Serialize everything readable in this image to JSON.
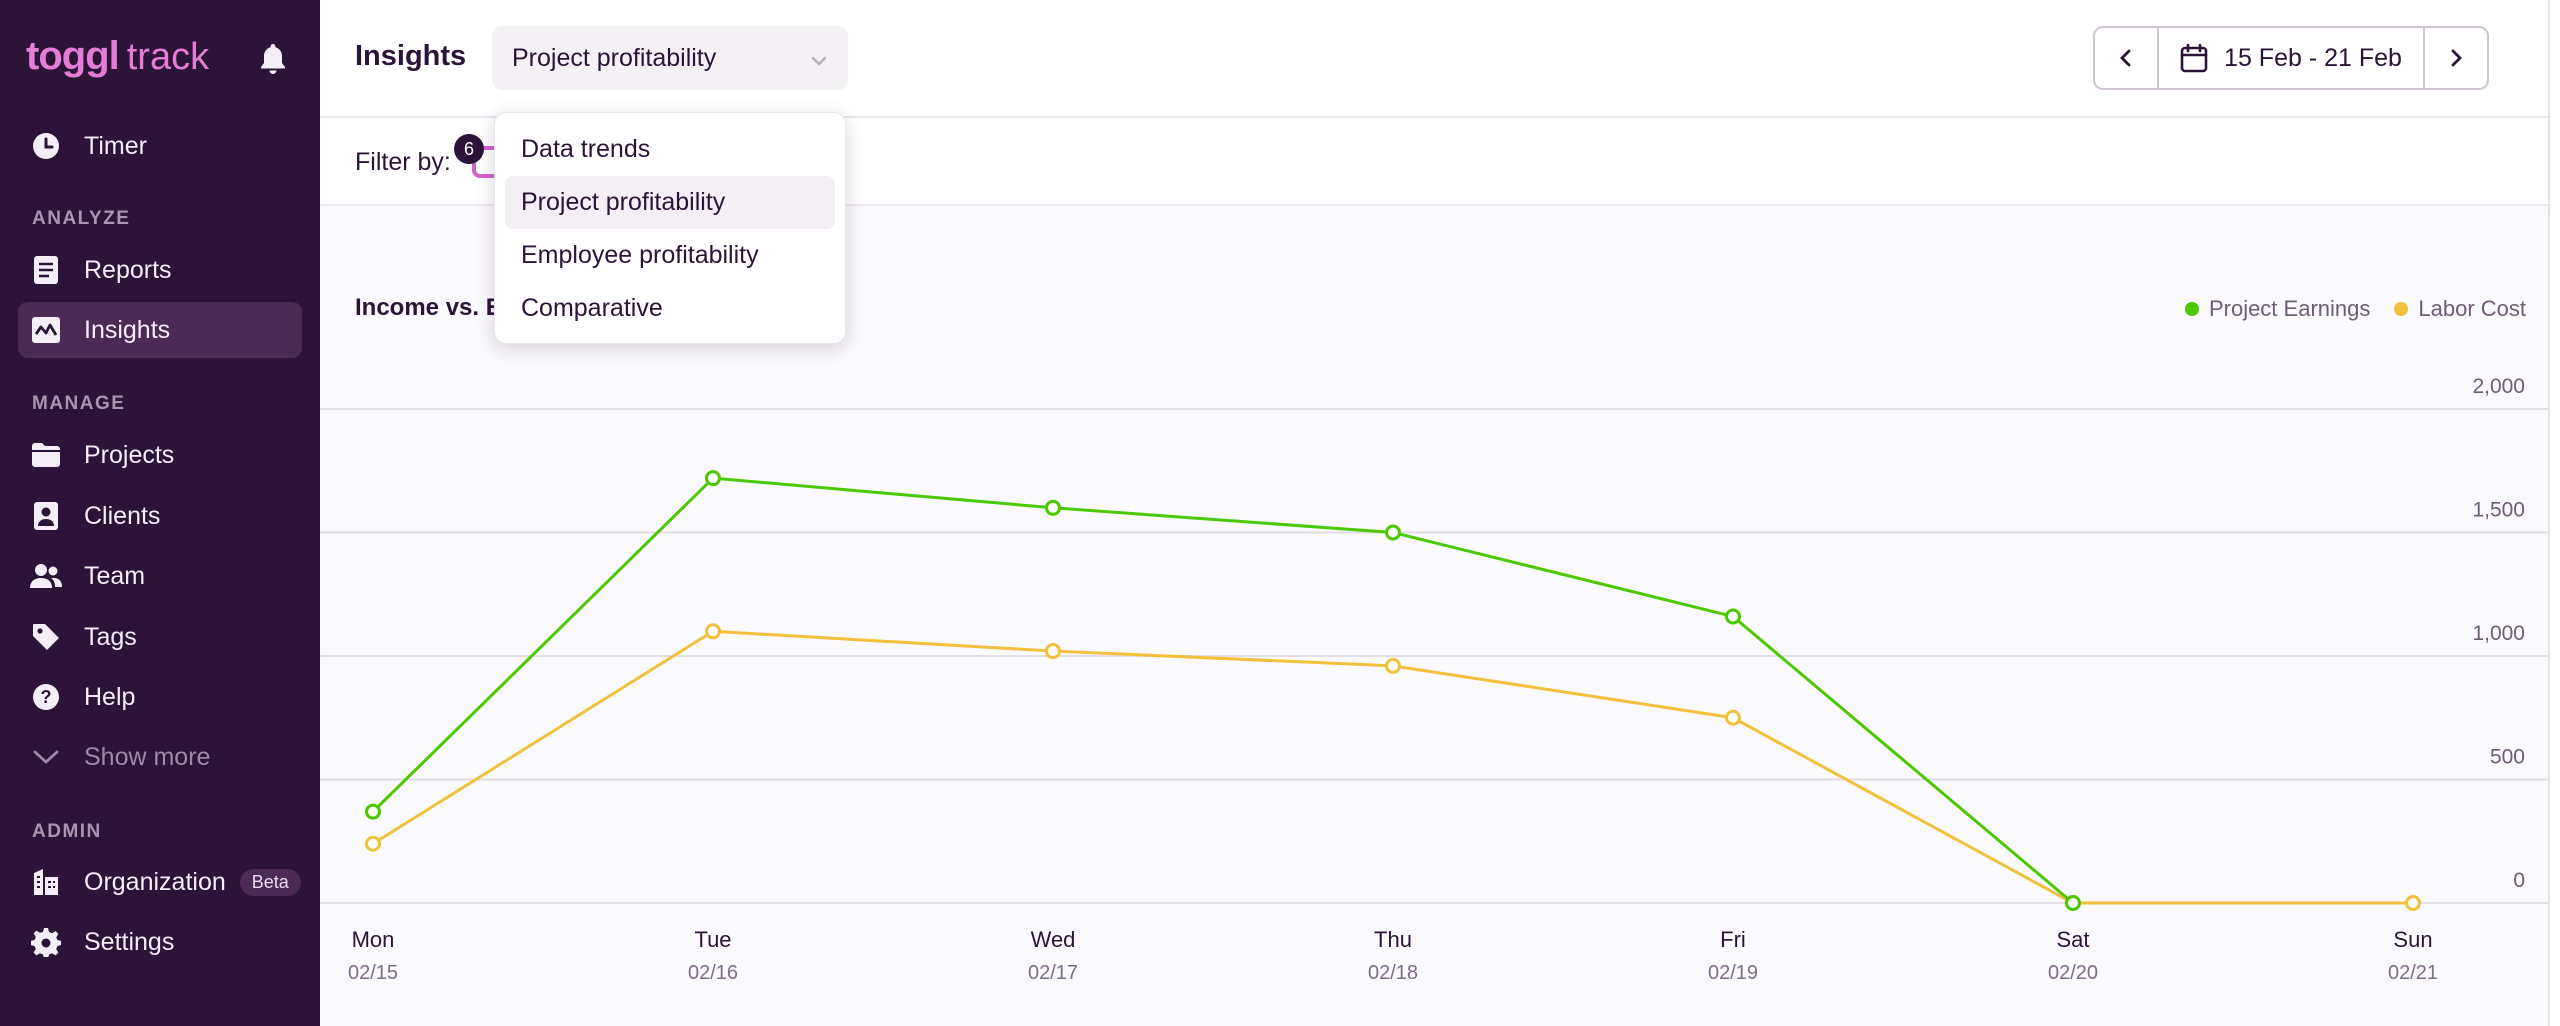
{
  "sidebar": {
    "logo_brand": "toggl",
    "logo_product": "track",
    "timer": "Timer",
    "analyze_label": "ANALYZE",
    "reports": "Reports",
    "insights": "Insights",
    "manage_label": "MANAGE",
    "projects": "Projects",
    "clients": "Clients",
    "team": "Team",
    "tags": "Tags",
    "help": "Help",
    "show_more": "Show more",
    "admin_label": "ADMIN",
    "organization": "Organization",
    "beta": "Beta",
    "settings": "Settings"
  },
  "header": {
    "title": "Insights",
    "report_select": "Project profitability",
    "date_range": "15 Feb - 21 Feb"
  },
  "filter": {
    "label": "Filter by:",
    "badge_count": "6"
  },
  "dropdown": {
    "options": [
      "Data trends",
      "Project profitability",
      "Employee profitability",
      "Comparative"
    ],
    "selected": "Project profitability"
  },
  "chart_data": {
    "type": "line",
    "title": "Income vs. E",
    "categories": [
      "Mon",
      "Tue",
      "Wed",
      "Thu",
      "Fri",
      "Sat",
      "Sun"
    ],
    "dates": [
      "02/15",
      "02/16",
      "02/17",
      "02/18",
      "02/19",
      "02/20",
      "02/21"
    ],
    "ylim": [
      0,
      2000
    ],
    "yticks": [
      "2,000",
      "1,500",
      "1,000",
      "500",
      "0"
    ],
    "ytick_values": [
      2000,
      1500,
      1000,
      500,
      0
    ],
    "grid": true,
    "legend_position": "top-right",
    "series": [
      {
        "name": "Project Earnings",
        "color": "#4bc800",
        "values": [
          370,
          1720,
          1600,
          1500,
          1160,
          0,
          null
        ]
      },
      {
        "name": "Labor Cost",
        "color": "#f1c13b",
        "values": [
          240,
          1100,
          1020,
          960,
          750,
          0,
          0
        ]
      }
    ]
  },
  "colors": {
    "sidebar_bg": "#2c1338",
    "brand_pink": "#e57cd8",
    "earnings": "#4bc800",
    "labor": "#f1c13b"
  }
}
